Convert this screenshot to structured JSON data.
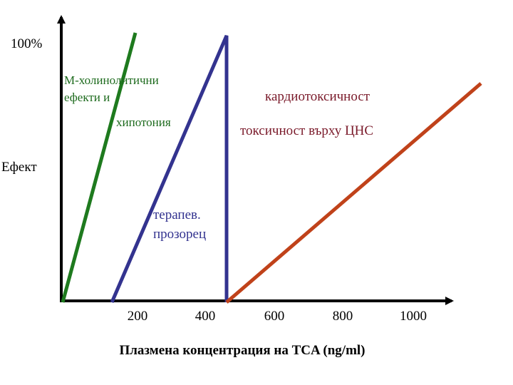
{
  "labels": {
    "y_max": "100%",
    "y_axis": "Ефект",
    "x_axis": "Плазмена концентрация на TCA (ng/ml)",
    "anticholinergic_line1": "М-холинолитични",
    "anticholinergic_line2": "ефекти и",
    "hypotension": "хипотония",
    "cardiotoxicity": "кардиотоксичност",
    "cns_toxicity": "токсичност върху ЦНС",
    "therapeutic_window_line1": "терапев.",
    "therapeutic_window_line2": "прозорец"
  },
  "x_ticks": [
    "200",
    "400",
    "600",
    "800",
    "1000"
  ],
  "colors": {
    "axis": "#000000",
    "green_line": "#1e7a1e",
    "blue_line": "#33338f",
    "red_line": "#c0421a",
    "green_text": "#1e6b1e",
    "blue_text": "#33338f",
    "maroon_text": "#7a1a2a"
  }
}
